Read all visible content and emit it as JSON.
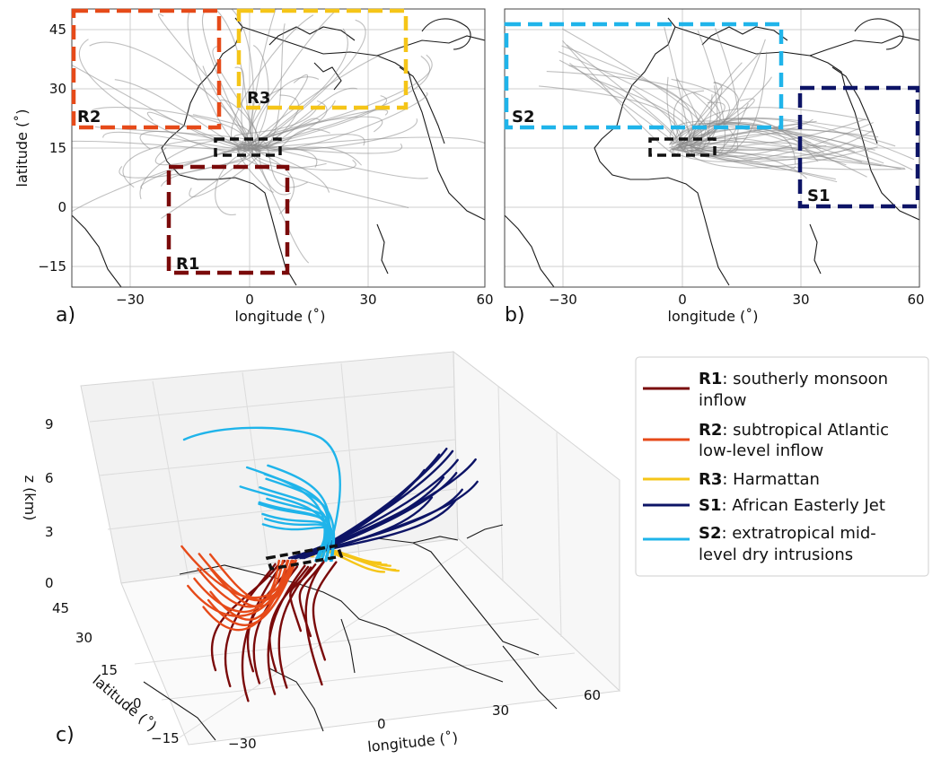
{
  "panel_labels": {
    "a": "a)",
    "b": "b)",
    "c": "c)"
  },
  "map_axes": {
    "xlabel": "longitude ($^\\circ$)",
    "xlabel_display": "longitude (˚)",
    "ylabel_display": "latitude (˚)",
    "x_ticks": [
      "−30",
      "0",
      "30",
      "60"
    ],
    "y_ticks": [
      "45",
      "30",
      "15",
      "0",
      "−15"
    ]
  },
  "regions": {
    "R1": {
      "label": "R1",
      "color": "#7a0a0a"
    },
    "R2": {
      "label": "R2",
      "color": "#e64a19"
    },
    "R3": {
      "label": "R3",
      "color": "#f5c518"
    },
    "S1": {
      "label": "S1",
      "color": "#0d1466"
    },
    "S2": {
      "label": "S2",
      "color": "#1fb4ea"
    },
    "source": {
      "color": "#111111"
    }
  },
  "panel_c": {
    "zlabel": "z (km)",
    "z_ticks": [
      "0",
      "3",
      "6",
      "9"
    ],
    "lat_ticks": [
      "45",
      "30",
      "15",
      "0",
      "−15"
    ],
    "lon_ticks": [
      "−30",
      "0",
      "30",
      "60"
    ],
    "ylabel": "latitude (˚)",
    "xlabel": "longitude (˚)"
  },
  "legend": [
    {
      "key": "R1",
      "text_line1": ": southerly monsoon",
      "text_line2": "inflow",
      "color": "#7a0a0a"
    },
    {
      "key": "R2",
      "text_line1": ": subtropical Atlantic",
      "text_line2": "low-level inflow",
      "color": "#e64a19"
    },
    {
      "key": "R3",
      "text_line1": ": Harmattan",
      "text_line2": "",
      "color": "#f5c518"
    },
    {
      "key": "S1",
      "text_line1": ": African Easterly Jet",
      "text_line2": "",
      "color": "#0d1466"
    },
    {
      "key": "S2",
      "text_line1": ": extratropical mid-",
      "text_line2": "level dry intrusions",
      "color": "#1fb4ea"
    }
  ]
}
